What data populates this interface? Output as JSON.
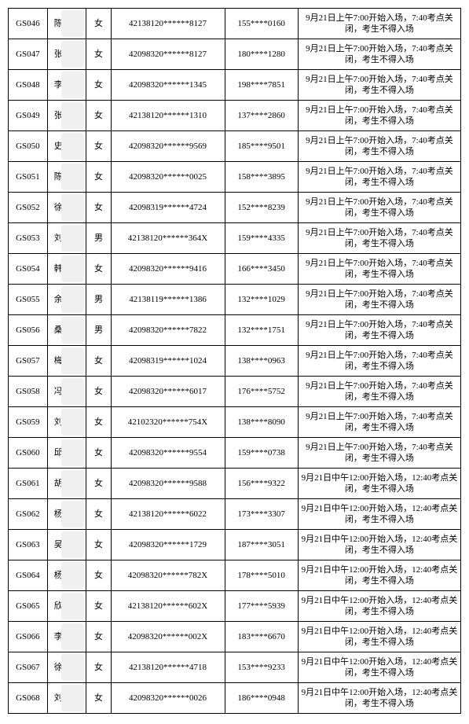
{
  "note_morning": "9月21日上午7:00开始入场，7:40考点关闭，考生不得入场",
  "note_afternoon": "9月21日中午12:00开始入场，12:40考点关闭，考生不得入场",
  "rows": [
    {
      "id": "GS046",
      "name": "陈",
      "sex": "女",
      "idno": "42138120******8127",
      "phone": "155****0160",
      "slot": "am"
    },
    {
      "id": "GS047",
      "name": "张",
      "sex": "女",
      "idno": "42098320******8127",
      "phone": "180****1280",
      "slot": "am"
    },
    {
      "id": "GS048",
      "name": "李",
      "sex": "女",
      "idno": "42098320******1345",
      "phone": "198****7851",
      "slot": "am"
    },
    {
      "id": "GS049",
      "name": "张",
      "sex": "女",
      "idno": "42138120******1310",
      "phone": "137****2860",
      "slot": "am"
    },
    {
      "id": "GS050",
      "name": "史",
      "sex": "女",
      "idno": "42098320******9569",
      "phone": "185****9501",
      "slot": "am"
    },
    {
      "id": "GS051",
      "name": "陈",
      "sex": "女",
      "idno": "42098320******0025",
      "phone": "158****3895",
      "slot": "am"
    },
    {
      "id": "GS052",
      "name": "徐",
      "sex": "女",
      "idno": "42098319******4724",
      "phone": "152****8239",
      "slot": "am"
    },
    {
      "id": "GS053",
      "name": "刘",
      "sex": "男",
      "idno": "42138120******364X",
      "phone": "159****4335",
      "slot": "am"
    },
    {
      "id": "GS054",
      "name": "韩",
      "sex": "女",
      "idno": "42098320******9416",
      "phone": "166****3450",
      "slot": "am"
    },
    {
      "id": "GS055",
      "name": "余",
      "sex": "男",
      "idno": "42138119******1386",
      "phone": "132****1029",
      "slot": "am"
    },
    {
      "id": "GS056",
      "name": "桑",
      "sex": "男",
      "idno": "42098320******7822",
      "phone": "132****1751",
      "slot": "am"
    },
    {
      "id": "GS057",
      "name": "梅",
      "sex": "女",
      "idno": "42098319******1024",
      "phone": "138****0963",
      "slot": "am"
    },
    {
      "id": "GS058",
      "name": "冯",
      "sex": "女",
      "idno": "42098320******6017",
      "phone": "176****5752",
      "slot": "am"
    },
    {
      "id": "GS059",
      "name": "刘",
      "sex": "女",
      "idno": "42102320******754X",
      "phone": "138****8090",
      "slot": "am"
    },
    {
      "id": "GS060",
      "name": "邱",
      "sex": "女",
      "idno": "42098320******9554",
      "phone": "159****0738",
      "slot": "am"
    },
    {
      "id": "GS061",
      "name": "胡",
      "sex": "女",
      "idno": "42098320******9588",
      "phone": "156****9322",
      "slot": "pm"
    },
    {
      "id": "GS062",
      "name": "杨",
      "sex": "女",
      "idno": "42138120******6022",
      "phone": "173****3307",
      "slot": "pm"
    },
    {
      "id": "GS063",
      "name": "吴",
      "sex": "女",
      "idno": "42098320******1729",
      "phone": "187****3051",
      "slot": "pm"
    },
    {
      "id": "GS064",
      "name": "杨",
      "sex": "女",
      "idno": "42098320******782X",
      "phone": "178****5010",
      "slot": "pm"
    },
    {
      "id": "GS065",
      "name": "欣",
      "sex": "女",
      "idno": "42138120******602X",
      "phone": "177****5939",
      "slot": "pm"
    },
    {
      "id": "GS066",
      "name": "李",
      "sex": "女",
      "idno": "42098320******002X",
      "phone": "183****6670",
      "slot": "pm"
    },
    {
      "id": "GS067",
      "name": "徐",
      "sex": "女",
      "idno": "42138120******4718",
      "phone": "153****9233",
      "slot": "pm"
    },
    {
      "id": "GS068",
      "name": "刘",
      "sex": "女",
      "idno": "42098320******0026",
      "phone": "186****0948",
      "slot": "pm"
    }
  ]
}
